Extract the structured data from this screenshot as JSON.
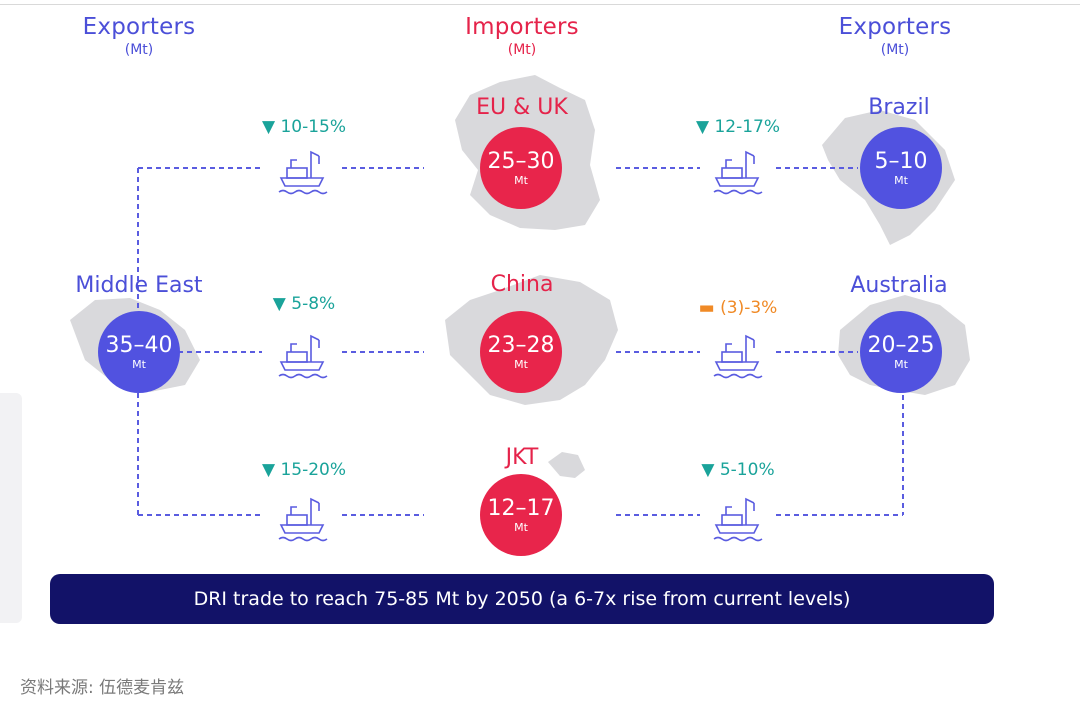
{
  "headers": {
    "left": {
      "title": "Exporters",
      "unit": "(Mt)"
    },
    "center": {
      "title": "Importers",
      "unit": "(Mt)"
    },
    "right": {
      "title": "Exporters",
      "unit": "(Mt)"
    }
  },
  "importers": [
    {
      "name": "EU & UK",
      "value": "25–30",
      "unit": "Mt"
    },
    {
      "name": "China",
      "value": "23–28",
      "unit": "Mt"
    },
    {
      "name": "JKT",
      "value": "12–17",
      "unit": "Mt"
    }
  ],
  "exporters": {
    "middle_east": {
      "name": "Middle East",
      "value": "35–40",
      "unit": "Mt"
    },
    "brazil": {
      "name": "Brazil",
      "value": "5–10",
      "unit": "Mt"
    },
    "australia": {
      "name": "Australia",
      "value": "20–25",
      "unit": "Mt"
    }
  },
  "flows": {
    "me_eu": {
      "marker": "▼",
      "text": "10-15%"
    },
    "me_china": {
      "marker": "▼",
      "text": "5-8%"
    },
    "me_jkt": {
      "marker": "▼",
      "text": "15-20%"
    },
    "brazil_eu": {
      "marker": "▼",
      "text": "12-17%"
    },
    "aus_china": {
      "marker": "▬",
      "text": "(3)-3%"
    },
    "aus_jkt": {
      "marker": "▼",
      "text": "5-10%"
    }
  },
  "banner": "DRI trade to reach 75-85 Mt by 2050 (a 6-7x rise from current levels)",
  "source": "资料来源: 伍德麦肯兹",
  "colors": {
    "exporter": "#5152e0",
    "importer": "#e8254b",
    "decline": "#1aa39a",
    "flat": "#f08a26",
    "banner": "#121268",
    "line": "#5a5ce0"
  }
}
